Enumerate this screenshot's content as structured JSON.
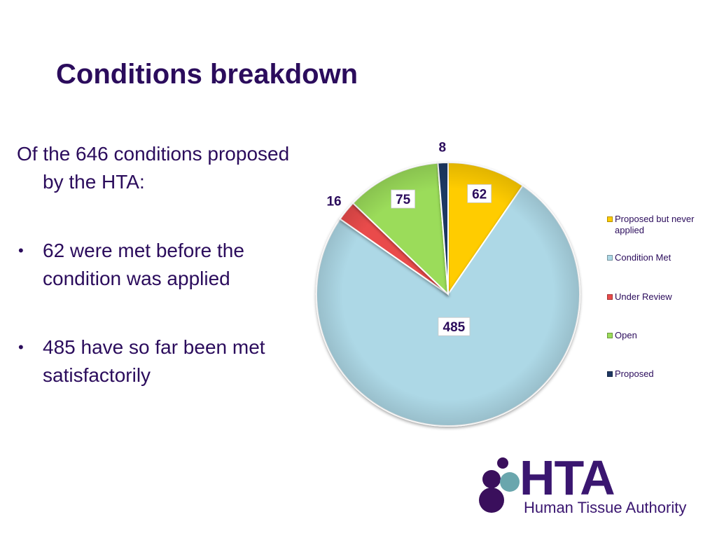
{
  "slide": {
    "title": "Conditions breakdown",
    "intro": "Of the 646 conditions proposed by the HTA:",
    "bullets": [
      "62 were met before the condition was applied",
      "485 have so far been met satisfactorily"
    ]
  },
  "chart_data": {
    "type": "pie",
    "title": "",
    "legend_position": "right",
    "categories": [
      "Proposed but never applied",
      "Condition Met",
      "Under Review",
      "Open",
      "Proposed"
    ],
    "values": [
      62,
      485,
      16,
      75,
      8
    ],
    "colors": [
      "#ffcc00",
      "#add8e6",
      "#e94b4b",
      "#9bdc5a",
      "#1f3864"
    ],
    "label_boxed": [
      true,
      true,
      false,
      true,
      false
    ],
    "labels": [
      "62",
      "485",
      "16",
      "75",
      "8"
    ]
  },
  "logo": {
    "word": "HTA",
    "subtitle": "Human Tissue Authority",
    "colors": {
      "dark": "#3a0f5c",
      "teal": "#6aa6ad"
    }
  },
  "icons": {
    "bullet": "•",
    "logo_mark": "molecule-circles-icon"
  }
}
